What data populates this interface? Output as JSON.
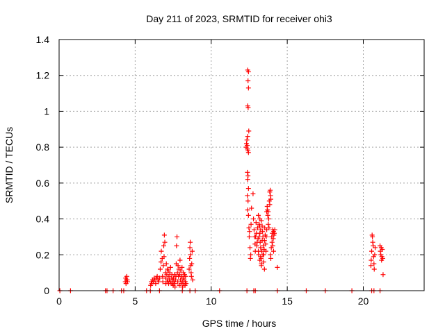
{
  "chart_data": {
    "type": "scatter",
    "title": "Day 211 of 2023, SRMTID for receiver ohi3",
    "xlabel": "GPS time / hours",
    "ylabel": "SRMTID / TECUs",
    "xlim": [
      0,
      24
    ],
    "ylim": [
      0,
      1.4
    ],
    "xticks": [
      0,
      5,
      10,
      15,
      20
    ],
    "yticks": [
      0,
      0.2,
      0.4,
      0.6,
      0.8,
      1,
      1.2,
      1.4
    ],
    "xtick_labels": [
      "0",
      "5",
      "10",
      "15",
      "20"
    ],
    "ytick_labels": [
      "0",
      "0.2",
      "0.4",
      "0.6",
      "0.8",
      "1",
      "1.2",
      "1.4"
    ],
    "grid": true,
    "marker": "+",
    "color": "#ff0000",
    "series": [
      {
        "name": "SRMTID",
        "points": [
          [
            0.05,
            0
          ],
          [
            0.75,
            0
          ],
          [
            3.05,
            0
          ],
          [
            3.15,
            0
          ],
          [
            3.55,
            0
          ],
          [
            4.1,
            0
          ],
          [
            4.25,
            0
          ],
          [
            5.75,
            0
          ],
          [
            6.0,
            0
          ],
          [
            6.6,
            0
          ],
          [
            8.1,
            0
          ],
          [
            8.6,
            0
          ],
          [
            8.95,
            0
          ],
          [
            10.55,
            0
          ],
          [
            12.35,
            0
          ],
          [
            12.8,
            0
          ],
          [
            12.9,
            0
          ],
          [
            14.35,
            0
          ],
          [
            16.25,
            0
          ],
          [
            17.5,
            0
          ],
          [
            19.25,
            0
          ],
          [
            20.55,
            0
          ],
          [
            20.7,
            0
          ],
          [
            21.1,
            0
          ],
          [
            4.35,
            0.05
          ],
          [
            4.38,
            0.07
          ],
          [
            4.42,
            0.06
          ],
          [
            4.45,
            0.08
          ],
          [
            4.48,
            0.06
          ],
          [
            4.5,
            0.05
          ],
          [
            4.4,
            0.04
          ],
          [
            6.02,
            0.03
          ],
          [
            6.06,
            0.05
          ],
          [
            6.1,
            0.04
          ],
          [
            6.15,
            0.06
          ],
          [
            6.2,
            0.05
          ],
          [
            6.25,
            0.07
          ],
          [
            6.3,
            0.06
          ],
          [
            6.35,
            0.04
          ],
          [
            6.4,
            0.07
          ],
          [
            6.45,
            0.08
          ],
          [
            6.5,
            0.06
          ],
          [
            6.55,
            0.05
          ],
          [
            6.6,
            0.07
          ],
          [
            6.65,
            0.12
          ],
          [
            6.7,
            0.16
          ],
          [
            6.72,
            0.22
          ],
          [
            6.78,
            0.18
          ],
          [
            6.8,
            0.08
          ],
          [
            6.82,
            0.05
          ],
          [
            6.85,
            0.14
          ],
          [
            6.88,
            0.25
          ],
          [
            6.9,
            0.19
          ],
          [
            6.92,
            0.31
          ],
          [
            6.95,
            0.27
          ],
          [
            6.98,
            0.1
          ],
          [
            7.0,
            0.07
          ],
          [
            7.02,
            0.04
          ],
          [
            7.05,
            0.15
          ],
          [
            7.08,
            0.09
          ],
          [
            7.1,
            0.05
          ],
          [
            7.12,
            0.12
          ],
          [
            7.15,
            0.06
          ],
          [
            7.18,
            0.11
          ],
          [
            7.2,
            0.04
          ],
          [
            7.22,
            0.08
          ],
          [
            7.25,
            0.06
          ],
          [
            7.28,
            0.1
          ],
          [
            7.3,
            0.05
          ],
          [
            7.33,
            0.13
          ],
          [
            7.36,
            0.04
          ],
          [
            7.4,
            0.07
          ],
          [
            7.42,
            0.09
          ],
          [
            7.45,
            0.04
          ],
          [
            7.48,
            0.06
          ],
          [
            7.5,
            0.03
          ],
          [
            7.52,
            0.07
          ],
          [
            7.55,
            0.05
          ],
          [
            7.58,
            0.09
          ],
          [
            7.6,
            0.04
          ],
          [
            7.62,
            0.02
          ],
          [
            7.65,
            0.06
          ],
          [
            7.68,
            0.08
          ],
          [
            7.7,
            0.15
          ],
          [
            7.72,
            0.25
          ],
          [
            7.75,
            0.3
          ],
          [
            7.78,
            0.1
          ],
          [
            7.8,
            0.05
          ],
          [
            7.82,
            0.14
          ],
          [
            7.85,
            0.08
          ],
          [
            7.88,
            0.12
          ],
          [
            7.9,
            0.03
          ],
          [
            7.92,
            0.09
          ],
          [
            7.95,
            0.17
          ],
          [
            7.98,
            0.06
          ],
          [
            8.0,
            0.11
          ],
          [
            8.02,
            0.04
          ],
          [
            8.05,
            0.08
          ],
          [
            8.08,
            0.13
          ],
          [
            8.1,
            0.05
          ],
          [
            8.12,
            0.02
          ],
          [
            8.15,
            0.07
          ],
          [
            8.18,
            0.1
          ],
          [
            8.2,
            0.04
          ],
          [
            8.22,
            0.06
          ],
          [
            8.25,
            0.09
          ],
          [
            8.28,
            0.03
          ],
          [
            8.3,
            0.05
          ],
          [
            8.32,
            0.08
          ],
          [
            8.35,
            0.04
          ],
          [
            8.55,
            0.12
          ],
          [
            8.58,
            0.18
          ],
          [
            8.6,
            0.24
          ],
          [
            8.62,
            0.27
          ],
          [
            8.64,
            0.2
          ],
          [
            8.66,
            0.14
          ],
          [
            8.68,
            0.1
          ],
          [
            8.7,
            0.08
          ],
          [
            8.72,
            0.15
          ],
          [
            8.75,
            0.22
          ],
          [
            8.78,
            0.06
          ],
          [
            12.3,
            0.8
          ],
          [
            12.32,
            0.82
          ],
          [
            12.35,
            0.84
          ],
          [
            12.37,
            0.81
          ],
          [
            12.38,
            0.79
          ],
          [
            12.4,
            0.86
          ],
          [
            12.42,
            0.78
          ],
          [
            12.45,
            0.77
          ],
          [
            12.38,
            0.66
          ],
          [
            12.4,
            0.62
          ],
          [
            12.42,
            0.64
          ],
          [
            12.38,
            0.53
          ],
          [
            12.4,
            0.45
          ],
          [
            12.42,
            0.5
          ],
          [
            12.45,
            0.57
          ],
          [
            12.4,
            1.23
          ],
          [
            12.45,
            1.22
          ],
          [
            12.42,
            1.17
          ],
          [
            12.45,
            1.13
          ],
          [
            12.4,
            1.03
          ],
          [
            12.43,
            1.02
          ],
          [
            12.47,
            0.89
          ],
          [
            12.45,
            0.42
          ],
          [
            12.48,
            0.35
          ],
          [
            12.5,
            0.3
          ],
          [
            12.52,
            0.33
          ],
          [
            12.55,
            0.24
          ],
          [
            12.58,
            0.18
          ],
          [
            12.6,
            0.2
          ],
          [
            12.62,
            0.37
          ],
          [
            12.65,
            0.46
          ],
          [
            12.75,
            0.54
          ],
          [
            12.78,
            0.4
          ],
          [
            12.82,
            0.34
          ],
          [
            12.85,
            0.3
          ],
          [
            12.88,
            0.26
          ],
          [
            12.9,
            0.22
          ],
          [
            12.92,
            0.3
          ],
          [
            12.95,
            0.38
          ],
          [
            12.98,
            0.32
          ],
          [
            13.0,
            0.25
          ],
          [
            13.02,
            0.27
          ],
          [
            13.05,
            0.35
          ],
          [
            13.08,
            0.29
          ],
          [
            13.1,
            0.22
          ],
          [
            13.12,
            0.2
          ],
          [
            13.15,
            0.3
          ],
          [
            13.18,
            0.36
          ],
          [
            13.2,
            0.32
          ],
          [
            13.22,
            0.27
          ],
          [
            13.25,
            0.24
          ],
          [
            13.28,
            0.18
          ],
          [
            13.3,
            0.15
          ],
          [
            13.32,
            0.22
          ],
          [
            13.35,
            0.28
          ],
          [
            13.38,
            0.33
          ],
          [
            13.4,
            0.3
          ],
          [
            13.42,
            0.25
          ],
          [
            13.45,
            0.2
          ],
          [
            13.48,
            0.23
          ],
          [
            13.5,
            0.28
          ],
          [
            13.52,
            0.35
          ],
          [
            13.55,
            0.31
          ],
          [
            13.58,
            0.26
          ],
          [
            13.6,
            0.22
          ],
          [
            13.62,
            0.3
          ],
          [
            13.65,
            0.34
          ],
          [
            13.1,
            0.42
          ],
          [
            13.15,
            0.37
          ],
          [
            13.2,
            0.4
          ],
          [
            13.25,
            0.34
          ],
          [
            13.3,
            0.39
          ],
          [
            13.35,
            0.36
          ],
          [
            13.2,
            0.17
          ],
          [
            13.3,
            0.14
          ],
          [
            13.25,
            0.19
          ],
          [
            13.4,
            0.2
          ],
          [
            13.45,
            0.16
          ],
          [
            13.5,
            0.12
          ],
          [
            13.65,
            0.44
          ],
          [
            13.68,
            0.47
          ],
          [
            13.7,
            0.45
          ],
          [
            13.72,
            0.42
          ],
          [
            13.75,
            0.37
          ],
          [
            13.78,
            0.4
          ],
          [
            13.8,
            0.35
          ],
          [
            13.75,
            0.44
          ],
          [
            13.82,
            0.5
          ],
          [
            13.85,
            0.55
          ],
          [
            13.88,
            0.56
          ],
          [
            13.9,
            0.53
          ],
          [
            13.92,
            0.51
          ],
          [
            13.85,
            0.48
          ],
          [
            13.9,
            0.2
          ],
          [
            13.92,
            0.18
          ],
          [
            13.95,
            0.24
          ],
          [
            13.98,
            0.3
          ],
          [
            14.0,
            0.27
          ],
          [
            14.02,
            0.32
          ],
          [
            14.05,
            0.34
          ],
          [
            14.08,
            0.29
          ],
          [
            14.1,
            0.33
          ],
          [
            14.12,
            0.31
          ],
          [
            14.15,
            0.32
          ],
          [
            14.18,
            0.34
          ],
          [
            14.05,
            0.25
          ],
          [
            14.1,
            0.22
          ],
          [
            14.35,
            0.13
          ],
          [
            20.5,
            0.14
          ],
          [
            20.52,
            0.17
          ],
          [
            20.55,
            0.22
          ],
          [
            20.58,
            0.31
          ],
          [
            20.6,
            0.3
          ],
          [
            20.62,
            0.27
          ],
          [
            20.65,
            0.25
          ],
          [
            20.68,
            0.19
          ],
          [
            20.7,
            0.15
          ],
          [
            20.72,
            0.12
          ],
          [
            20.75,
            0.2
          ],
          [
            20.78,
            0.24
          ],
          [
            21.1,
            0.25
          ],
          [
            21.12,
            0.22
          ],
          [
            21.15,
            0.2
          ],
          [
            21.18,
            0.24
          ],
          [
            21.2,
            0.17
          ],
          [
            21.22,
            0.19
          ],
          [
            21.25,
            0.23
          ],
          [
            21.28,
            0.18
          ],
          [
            21.3,
            0.09
          ]
        ]
      }
    ]
  }
}
